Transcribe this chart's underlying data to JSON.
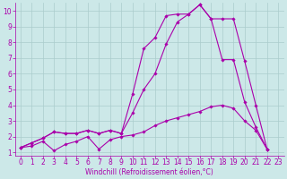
{
  "background_color": "#cce8e8",
  "grid_color": "#aacccc",
  "line_color": "#aa00aa",
  "xlabel": "Windchill (Refroidissement éolien,°C)",
  "xlim": [
    -0.5,
    23.5
  ],
  "ylim": [
    0.8,
    10.5
  ],
  "xticks": [
    0,
    1,
    2,
    3,
    4,
    5,
    6,
    7,
    8,
    9,
    10,
    11,
    12,
    13,
    14,
    15,
    16,
    17,
    18,
    19,
    20,
    21,
    22,
    23
  ],
  "yticks": [
    1,
    2,
    3,
    4,
    5,
    6,
    7,
    8,
    9,
    10
  ],
  "line1_x": [
    0,
    1,
    2,
    3,
    4,
    5,
    6,
    7,
    8,
    9,
    10,
    11,
    12,
    13,
    14,
    15,
    16,
    17,
    18,
    19,
    20,
    21,
    22
  ],
  "line1_y": [
    1.3,
    1.4,
    1.7,
    1.1,
    1.5,
    1.7,
    2.0,
    1.2,
    1.8,
    2.0,
    2.1,
    2.3,
    2.7,
    3.0,
    3.2,
    3.4,
    3.6,
    3.9,
    4.0,
    3.8,
    3.0,
    2.4,
    1.2
  ],
  "line2_x": [
    0,
    1,
    2,
    3,
    4,
    5,
    6,
    7,
    8,
    9,
    10,
    11,
    12,
    13,
    14,
    15,
    16,
    17,
    18,
    19,
    20,
    21,
    22
  ],
  "line2_y": [
    1.3,
    1.6,
    1.9,
    2.3,
    2.2,
    2.2,
    2.4,
    2.2,
    2.4,
    2.2,
    4.7,
    7.6,
    8.3,
    9.7,
    9.8,
    9.8,
    10.4,
    9.5,
    9.5,
    9.5,
    6.8,
    4.0,
    1.2
  ],
  "line3_x": [
    0,
    1,
    2,
    3,
    4,
    5,
    6,
    7,
    8,
    9,
    10,
    11,
    12,
    13,
    14,
    15,
    16,
    17,
    18,
    19,
    20,
    21,
    22
  ],
  "line3_y": [
    1.3,
    1.6,
    1.9,
    2.3,
    2.2,
    2.2,
    2.4,
    2.2,
    2.4,
    2.2,
    3.5,
    5.0,
    6.0,
    7.9,
    9.3,
    9.8,
    10.4,
    9.5,
    6.9,
    6.9,
    4.2,
    2.6,
    1.2
  ],
  "font_size_label": 5.5,
  "font_size_tick": 5.5,
  "lw": 0.8,
  "ms": 1.8
}
